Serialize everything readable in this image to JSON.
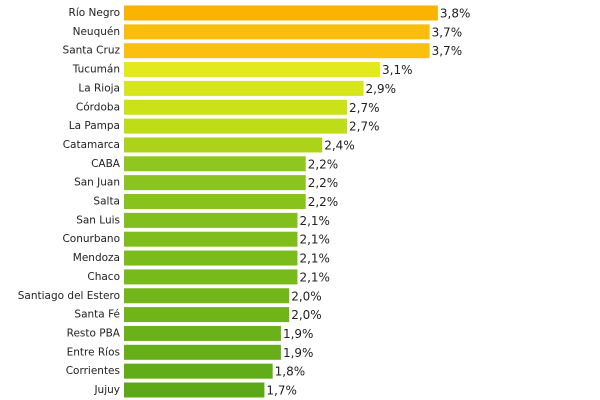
{
  "chart_data": {
    "type": "bar",
    "orientation": "horizontal",
    "categories": [
      "Río Negro",
      "Neuquén",
      "Santa Cruz",
      "Tucumán",
      "La Rioja",
      "Córdoba",
      "La Pampa",
      "Catamarca",
      "CABA",
      "San Juan",
      "Salta",
      "San Luis",
      "Conurbano",
      "Mendoza",
      "Chaco",
      "Santiago del Estero",
      "Santa Fé",
      "Resto PBA",
      "Entre Ríos",
      "Corrientes",
      "Jujuy"
    ],
    "values": [
      3.8,
      3.7,
      3.7,
      3.1,
      2.9,
      2.7,
      2.7,
      2.4,
      2.2,
      2.2,
      2.2,
      2.1,
      2.1,
      2.1,
      2.1,
      2.0,
      2.0,
      1.9,
      1.9,
      1.8,
      1.7
    ],
    "value_labels": [
      "3,8%",
      "3,7%",
      "3,7%",
      "3,1%",
      "2,9%",
      "2,7%",
      "2,7%",
      "2,4%",
      "2,2%",
      "2,2%",
      "2,2%",
      "2,1%",
      "2,1%",
      "2,1%",
      "2,1%",
      "2,0%",
      "2,0%",
      "1,9%",
      "1,9%",
      "1,8%",
      "1,7%"
    ],
    "colors": [
      "#f9b300",
      "#fbbd0c",
      "#fbbf10",
      "#e2ea1e",
      "#d6e61a",
      "#cbe118",
      "#bfdc18",
      "#acd31a",
      "#8fc61f",
      "#8bc41e",
      "#88c21d",
      "#82bf1c",
      "#7fbd1c",
      "#7bbb1b",
      "#78b91b",
      "#73b61a",
      "#70b41a",
      "#6bb119",
      "#67af18",
      "#62ac17",
      "#5ca816"
    ]
  }
}
